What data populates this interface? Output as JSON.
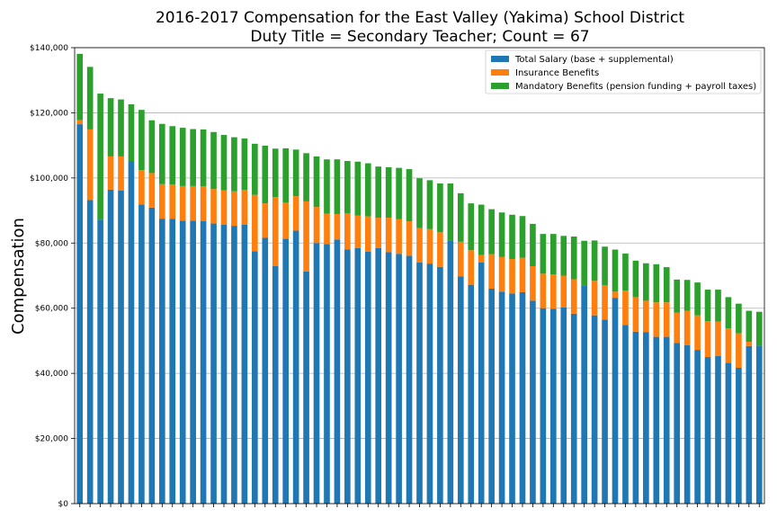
{
  "chart_data": {
    "type": "bar",
    "stacked": true,
    "title": "2016-2017 Compensation for the East Valley (Yakima) School District",
    "subtitle": "Duty Title = Secondary Teacher; Count = 67",
    "xlabel": "",
    "ylabel": "Compensation",
    "ylim": [
      0,
      140000
    ],
    "yticks": [
      0,
      20000,
      40000,
      60000,
      80000,
      100000,
      120000,
      140000
    ],
    "ytick_labels": [
      "$0",
      "$20,000",
      "$40,000",
      "$60,000",
      "$80,000",
      "$100,000",
      "$120,000",
      "$140,000"
    ],
    "grid": "horizontal",
    "legend_position": "top-right",
    "colors": {
      "Total Salary (base + supplemental)": "#1f77b4",
      "Insurance Benefits": "#ff7f0e",
      "Mandatory Benefits (pension funding + payroll taxes)": "#2ca02c"
    },
    "series": [
      {
        "name": "Total Salary (base + supplemental)",
        "values": [
          116500,
          93200,
          87200,
          96400,
          96100,
          105200,
          91800,
          90900,
          87500,
          87400,
          86900,
          86900,
          86800,
          86000,
          85600,
          85300,
          85700,
          77500,
          81600,
          72900,
          81300,
          83800,
          71300,
          80000,
          79700,
          81100,
          78000,
          78500,
          77400,
          78500,
          77200,
          76700,
          76100,
          74000,
          73700,
          72700,
          80800,
          69800,
          67200,
          74000,
          66000,
          65100,
          64500,
          64900,
          62300,
          60000,
          59800,
          60200,
          58300,
          67000,
          57800,
          56500,
          63200,
          54800,
          52800,
          52700,
          51200,
          51200,
          49300,
          48600,
          47200,
          45000,
          45300,
          43200,
          41700,
          48400,
          48500
        ]
      },
      {
        "name": "Insurance Benefits",
        "values": [
          1300,
          21700,
          0,
          10200,
          10500,
          0,
          10600,
          10600,
          10600,
          10600,
          10600,
          10600,
          10600,
          10600,
          10600,
          10600,
          10600,
          17300,
          10600,
          21200,
          11100,
          10600,
          21500,
          11100,
          9300,
          7800,
          11100,
          10000,
          10800,
          9300,
          10600,
          10600,
          10600,
          10600,
          10600,
          10600,
          0,
          10600,
          10600,
          2300,
          10600,
          10600,
          10600,
          10600,
          10600,
          10600,
          10600,
          9800,
          10600,
          0,
          10600,
          10600,
          1900,
          10600,
          10600,
          9600,
          10600,
          10600,
          9300,
          10600,
          10600,
          11000,
          10600,
          10600,
          10600,
          1300,
          0
        ]
      },
      {
        "name": "Mandatory Benefits (pension funding + payroll taxes)",
        "values": [
          20300,
          19200,
          38700,
          17900,
          17500,
          17400,
          18500,
          16200,
          18500,
          17900,
          17900,
          17500,
          17500,
          17500,
          17000,
          16600,
          15800,
          15700,
          17700,
          14900,
          16700,
          14300,
          14800,
          15500,
          16700,
          16800,
          16100,
          16500,
          16300,
          15700,
          15500,
          15800,
          16000,
          15300,
          15000,
          15000,
          17500,
          14900,
          14400,
          15500,
          13800,
          13700,
          13600,
          12800,
          13000,
          12200,
          12400,
          12200,
          13100,
          13700,
          12400,
          11800,
          12900,
          11400,
          11200,
          11500,
          11700,
          10800,
          10200,
          9500,
          10100,
          9700,
          9800,
          9600,
          9100,
          9500,
          10400
        ]
      }
    ]
  }
}
